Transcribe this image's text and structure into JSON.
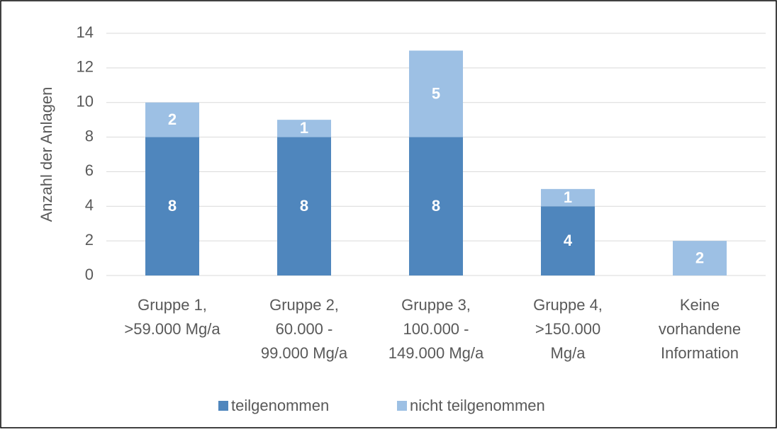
{
  "chart_data": {
    "type": "stacked_bar",
    "y_label": "Anzahl der Anlagen",
    "categories": [
      [
        "Gruppe 1,",
        ">59.000 Mg/a"
      ],
      [
        "Gruppe 2,",
        "60.000 -",
        "99.000 Mg/a"
      ],
      [
        "Gruppe 3,",
        "100.000 -",
        "149.000 Mg/a"
      ],
      [
        "Gruppe 4,",
        ">150.000",
        "Mg/a"
      ],
      [
        "Keine",
        "vorhandene",
        "Information"
      ]
    ],
    "series": [
      {
        "name": "teilgenommen",
        "color": "#4f86bd",
        "values": [
          8,
          8,
          8,
          4,
          0
        ]
      },
      {
        "name": "nicht teilgenommen",
        "color": "#9dc0e4",
        "values": [
          2,
          1,
          5,
          1,
          2
        ]
      }
    ],
    "ylim": [
      0,
      14
    ],
    "yticks": [
      0,
      2,
      4,
      6,
      8,
      10,
      12,
      14
    ],
    "grid": true,
    "legend": "bottom"
  }
}
